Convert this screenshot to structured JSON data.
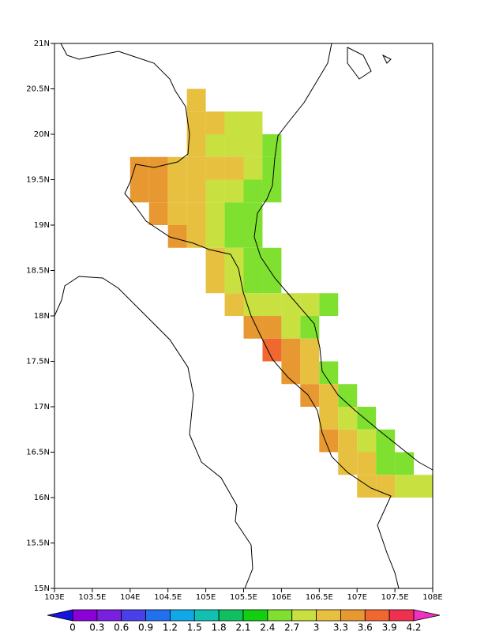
{
  "chart_data": {
    "type": "heatmap",
    "xlim": [
      103,
      108
    ],
    "ylim": [
      15,
      21
    ],
    "xticks": [
      {
        "value": 103,
        "label": "103E"
      },
      {
        "value": 103.5,
        "label": "103.5E"
      },
      {
        "value": 104,
        "label": "104E"
      },
      {
        "value": 104.5,
        "label": "104.5E"
      },
      {
        "value": 105,
        "label": "105E"
      },
      {
        "value": 105.5,
        "label": "105.5E"
      },
      {
        "value": 106,
        "label": "106E"
      },
      {
        "value": 106.5,
        "label": "106.5E"
      },
      {
        "value": 107,
        "label": "107E"
      },
      {
        "value": 107.5,
        "label": "107.5E"
      },
      {
        "value": 108,
        "label": "108E"
      }
    ],
    "yticks": [
      {
        "value": 15,
        "label": "15N"
      },
      {
        "value": 15.5,
        "label": "15.5N"
      },
      {
        "value": 16,
        "label": "16N"
      },
      {
        "value": 16.5,
        "label": "16.5N"
      },
      {
        "value": 17,
        "label": "17N"
      },
      {
        "value": 17.5,
        "label": "17.5N"
      },
      {
        "value": 18,
        "label": "18N"
      },
      {
        "value": 18.5,
        "label": "18.5N"
      },
      {
        "value": 19,
        "label": "19N"
      },
      {
        "value": 19.5,
        "label": "19.5N"
      },
      {
        "value": 20,
        "label": "20N"
      },
      {
        "value": 20.5,
        "label": "20.5N"
      },
      {
        "value": 21,
        "label": "21N"
      }
    ],
    "cell_size": 0.25,
    "x": [
      104.875,
      104.875,
      105.125,
      105.375,
      105.625,
      104.875,
      105.125,
      105.375,
      105.625,
      105.875,
      104.125,
      104.375,
      104.625,
      104.875,
      105.125,
      105.375,
      105.625,
      105.875,
      104.125,
      104.375,
      104.625,
      104.875,
      105.125,
      105.375,
      105.625,
      105.875,
      104.375,
      104.625,
      104.875,
      105.125,
      105.375,
      105.625,
      104.625,
      104.875,
      105.125,
      105.375,
      105.625,
      105.125,
      105.375,
      105.625,
      105.875,
      105.125,
      105.375,
      105.625,
      105.875,
      105.375,
      105.625,
      105.875,
      106.125,
      106.375,
      106.625,
      105.625,
      105.875,
      106.125,
      106.375,
      105.875,
      106.125,
      106.375,
      106.125,
      106.375,
      106.625,
      106.375,
      106.625,
      106.875,
      106.625,
      106.875,
      107.125,
      106.625,
      106.875,
      107.125,
      107.375,
      106.875,
      107.125,
      107.375,
      107.625,
      107.125,
      107.375,
      107.625,
      107.875
    ],
    "y": [
      20.375,
      20.125,
      20.125,
      20.125,
      20.125,
      19.875,
      19.875,
      19.875,
      19.875,
      19.875,
      19.625,
      19.625,
      19.625,
      19.625,
      19.625,
      19.625,
      19.625,
      19.625,
      19.375,
      19.375,
      19.375,
      19.375,
      19.375,
      19.375,
      19.375,
      19.375,
      19.125,
      19.125,
      19.125,
      19.125,
      19.125,
      19.125,
      18.875,
      18.875,
      18.875,
      18.875,
      18.875,
      18.625,
      18.625,
      18.625,
      18.625,
      18.375,
      18.375,
      18.375,
      18.375,
      18.125,
      18.125,
      18.125,
      18.125,
      18.125,
      18.125,
      17.875,
      17.875,
      17.875,
      17.875,
      17.625,
      17.625,
      17.625,
      17.375,
      17.375,
      17.375,
      17.125,
      17.125,
      17.125,
      16.875,
      16.875,
      16.875,
      16.625,
      16.625,
      16.625,
      16.625,
      16.375,
      16.375,
      16.375,
      16.375,
      16.125,
      16.125,
      16.125,
      16.125
    ],
    "values": [
      3.15,
      3.15,
      3.15,
      2.85,
      2.85,
      3.15,
      2.85,
      2.85,
      2.85,
      2.55,
      3.45,
      3.45,
      3.15,
      3.15,
      3.15,
      3.15,
      2.85,
      2.55,
      3.45,
      3.45,
      3.15,
      3.15,
      2.85,
      2.85,
      2.55,
      2.55,
      3.45,
      3.15,
      3.15,
      2.85,
      2.55,
      2.55,
      3.45,
      3.15,
      2.85,
      2.55,
      2.55,
      3.15,
      2.85,
      2.55,
      2.55,
      3.15,
      2.85,
      2.55,
      2.55,
      3.15,
      2.85,
      2.85,
      2.85,
      2.85,
      2.55,
      3.45,
      3.45,
      2.85,
      2.55,
      3.75,
      3.45,
      3.15,
      3.45,
      3.15,
      2.55,
      3.45,
      3.15,
      2.55,
      3.15,
      2.85,
      2.55,
      3.45,
      3.15,
      2.85,
      2.55,
      3.15,
      3.15,
      2.55,
      2.55,
      3.15,
      3.15,
      2.85,
      2.85
    ],
    "levels": [
      0,
      0.3,
      0.6,
      0.9,
      1.2,
      1.5,
      1.8,
      2.1,
      2.4,
      2.7,
      3,
      3.3,
      3.6,
      3.9,
      4.2
    ],
    "colors": [
      "#1414e0",
      "#8a00d6",
      "#7a1ee0",
      "#4a40ea",
      "#2070f0",
      "#10a8e8",
      "#10c0b0",
      "#10c060",
      "#10d010",
      "#80e030",
      "#c8e040",
      "#e8c040",
      "#e89830",
      "#f06830",
      "#f03050",
      "#f030c0"
    ]
  }
}
